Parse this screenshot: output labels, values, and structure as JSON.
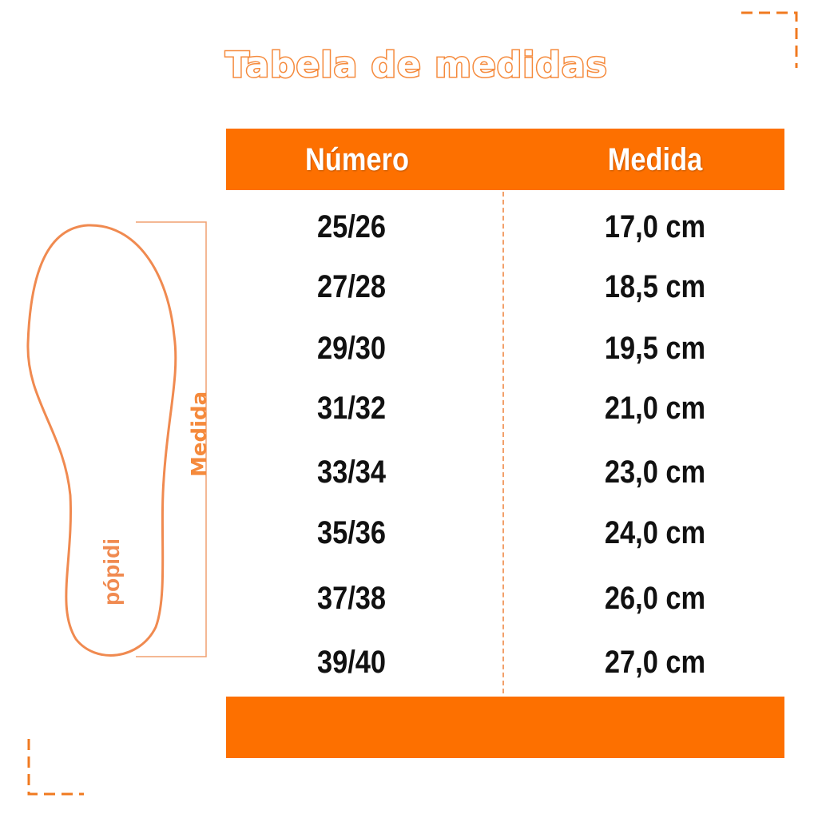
{
  "title": "Tabela de medidas",
  "table": {
    "headers": [
      "Número",
      "Medida"
    ],
    "rows": [
      [
        "25/26",
        "17,0 cm"
      ],
      [
        "27/28",
        "18,5 cm"
      ],
      [
        "29/30",
        "19,5 cm"
      ],
      [
        "31/32",
        "21,0 cm"
      ],
      [
        "33/34",
        "23,0 cm"
      ],
      [
        "35/36",
        "24,0 cm"
      ],
      [
        "37/38",
        "26,0 cm"
      ],
      [
        "39/40",
        "27,0 cm"
      ]
    ]
  },
  "illustration": {
    "measure_label": "Medida",
    "brand": "pópidi"
  },
  "colors": {
    "accent": "#fd7000",
    "outline": "#f58a3c"
  }
}
